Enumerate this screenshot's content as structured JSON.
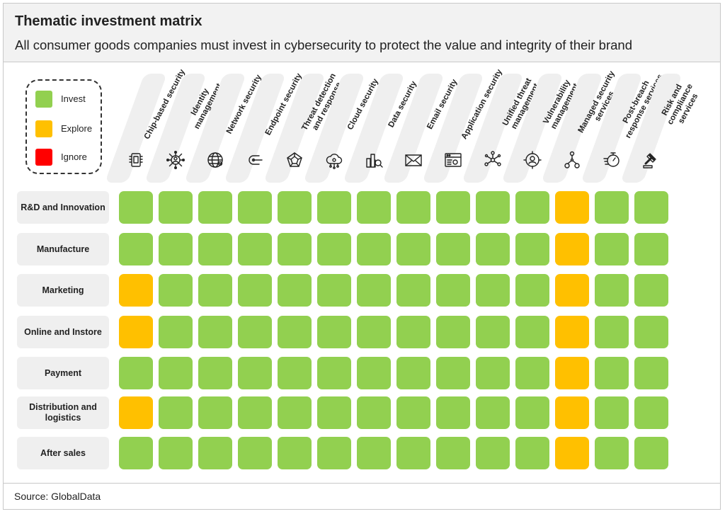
{
  "header": {
    "title": "Thematic investment matrix",
    "subtitle": "All consumer goods companies must invest in cybersecurity to protect the value and integrity of their brand"
  },
  "footer": {
    "source": "Source: GlobalData"
  },
  "colors": {
    "Invest": "#92d050",
    "Explore": "#ffc000",
    "Ignore": "#ff0000"
  },
  "legend": [
    {
      "label": "Invest",
      "color": "#92d050"
    },
    {
      "label": "Explore",
      "color": "#ffc000"
    },
    {
      "label": "Ignore",
      "color": "#ff0000"
    }
  ],
  "chart_data": {
    "type": "heatmap",
    "columns": [
      {
        "label": "Chip-based security",
        "icon": "chip-icon"
      },
      {
        "label": "Identity management",
        "icon": "identity-network-icon"
      },
      {
        "label": "Network security",
        "icon": "globe-network-icon"
      },
      {
        "label": "Endpoint security",
        "icon": "endpoint-icon"
      },
      {
        "label": "Threat detection and response",
        "icon": "threat-icon"
      },
      {
        "label": "Cloud security",
        "icon": "cloud-icon"
      },
      {
        "label": "Data security",
        "icon": "data-search-icon"
      },
      {
        "label": "Email security",
        "icon": "envelope-icon"
      },
      {
        "label": "Application security",
        "icon": "app-window-icon"
      },
      {
        "label": "Unified threat management",
        "icon": "nodes-icon"
      },
      {
        "label": "Vulnerability management",
        "icon": "user-target-icon"
      },
      {
        "label": "Managed security services",
        "icon": "hierarchy-icon"
      },
      {
        "label": "Post-breach response services",
        "icon": "stopwatch-icon"
      },
      {
        "label": "Risk and compliance services",
        "icon": "gavel-icon"
      }
    ],
    "rows": [
      {
        "label": "R&D and Innovation",
        "values": [
          "Invest",
          "Invest",
          "Invest",
          "Invest",
          "Invest",
          "Invest",
          "Invest",
          "Invest",
          "Invest",
          "Invest",
          "Invest",
          "Explore",
          "Invest",
          "Invest"
        ]
      },
      {
        "label": "Manufacture",
        "values": [
          "Invest",
          "Invest",
          "Invest",
          "Invest",
          "Invest",
          "Invest",
          "Invest",
          "Invest",
          "Invest",
          "Invest",
          "Invest",
          "Explore",
          "Invest",
          "Invest"
        ]
      },
      {
        "label": "Marketing",
        "values": [
          "Explore",
          "Invest",
          "Invest",
          "Invest",
          "Invest",
          "Invest",
          "Invest",
          "Invest",
          "Invest",
          "Invest",
          "Invest",
          "Explore",
          "Invest",
          "Invest"
        ]
      },
      {
        "label": "Online and Instore",
        "values": [
          "Explore",
          "Invest",
          "Invest",
          "Invest",
          "Invest",
          "Invest",
          "Invest",
          "Invest",
          "Invest",
          "Invest",
          "Invest",
          "Explore",
          "Invest",
          "Invest"
        ]
      },
      {
        "label": "Payment",
        "values": [
          "Invest",
          "Invest",
          "Invest",
          "Invest",
          "Invest",
          "Invest",
          "Invest",
          "Invest",
          "Invest",
          "Invest",
          "Invest",
          "Explore",
          "Invest",
          "Invest"
        ]
      },
      {
        "label": "Distribution and logistics",
        "values": [
          "Explore",
          "Invest",
          "Invest",
          "Invest",
          "Invest",
          "Invest",
          "Invest",
          "Invest",
          "Invest",
          "Invest",
          "Invest",
          "Explore",
          "Invest",
          "Invest"
        ]
      },
      {
        "label": "After sales",
        "values": [
          "Invest",
          "Invest",
          "Invest",
          "Invest",
          "Invest",
          "Invest",
          "Invest",
          "Invest",
          "Invest",
          "Invest",
          "Invest",
          "Explore",
          "Invest",
          "Invest"
        ]
      }
    ]
  }
}
